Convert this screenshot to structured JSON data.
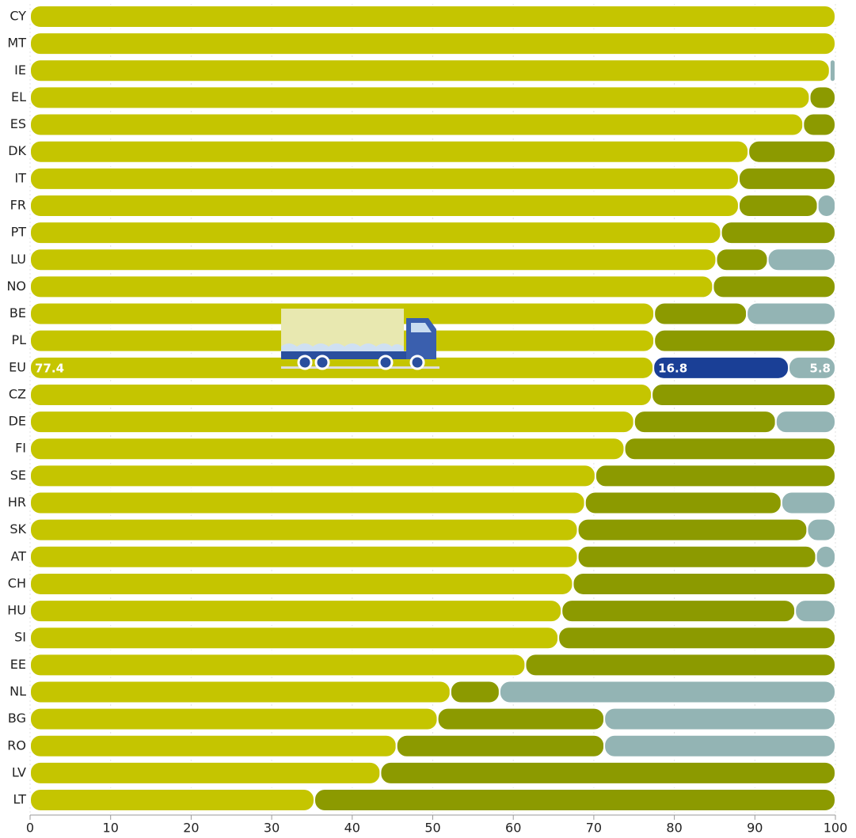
{
  "chart_data": {
    "type": "stacked-bar-horizontal",
    "categories": [
      "CY",
      "MT",
      "IE",
      "EL",
      "ES",
      "DK",
      "IT",
      "FR",
      "PT",
      "LU",
      "NO",
      "BE",
      "PL",
      "EU",
      "CZ",
      "DE",
      "FI",
      "SE",
      "HR",
      "SK",
      "AT",
      "CH",
      "HU",
      "SI",
      "EE",
      "NL",
      "BG",
      "RO",
      "LV",
      "LT"
    ],
    "series": [
      {
        "color": "#c5c500",
        "values": [
          100,
          100,
          99.3,
          96.8,
          96,
          89.2,
          88,
          88,
          85.8,
          85.2,
          84.8,
          77.5,
          77.5,
          77.4,
          77.2,
          75,
          73.8,
          70.2,
          68.9,
          68,
          68,
          67.4,
          66,
          65.6,
          61.5,
          52.2,
          50.6,
          45.5,
          43.5,
          35.3
        ]
      },
      {
        "color": "#8c9a00",
        "values": [
          null,
          null,
          null,
          3.2,
          4,
          10.8,
          12,
          9.8,
          14.2,
          6.4,
          15.2,
          11.5,
          22.5,
          16.8,
          22.8,
          17.6,
          26.2,
          29.8,
          24.4,
          28.5,
          29.6,
          32.6,
          29,
          34.4,
          38.5,
          6.1,
          20.7,
          25.8,
          56.5,
          64.7
        ]
      },
      {
        "color": "#93b4b4",
        "values": [
          null,
          null,
          0.7,
          null,
          null,
          null,
          null,
          2.2,
          null,
          8.4,
          null,
          11,
          null,
          5.8,
          null,
          7.4,
          null,
          null,
          6.7,
          3.5,
          2.4,
          null,
          5,
          null,
          null,
          41.7,
          28.7,
          28.7,
          null,
          null
        ]
      }
    ],
    "highlight": {
      "category": "EU",
      "colors": [
        "#c5c500",
        "#1a3f96",
        "#93b4b4"
      ]
    },
    "xlim": [
      0,
      100
    ],
    "xticks": [
      0,
      10,
      20,
      30,
      40,
      50,
      60,
      70,
      80,
      90,
      100
    ],
    "grid": true
  }
}
